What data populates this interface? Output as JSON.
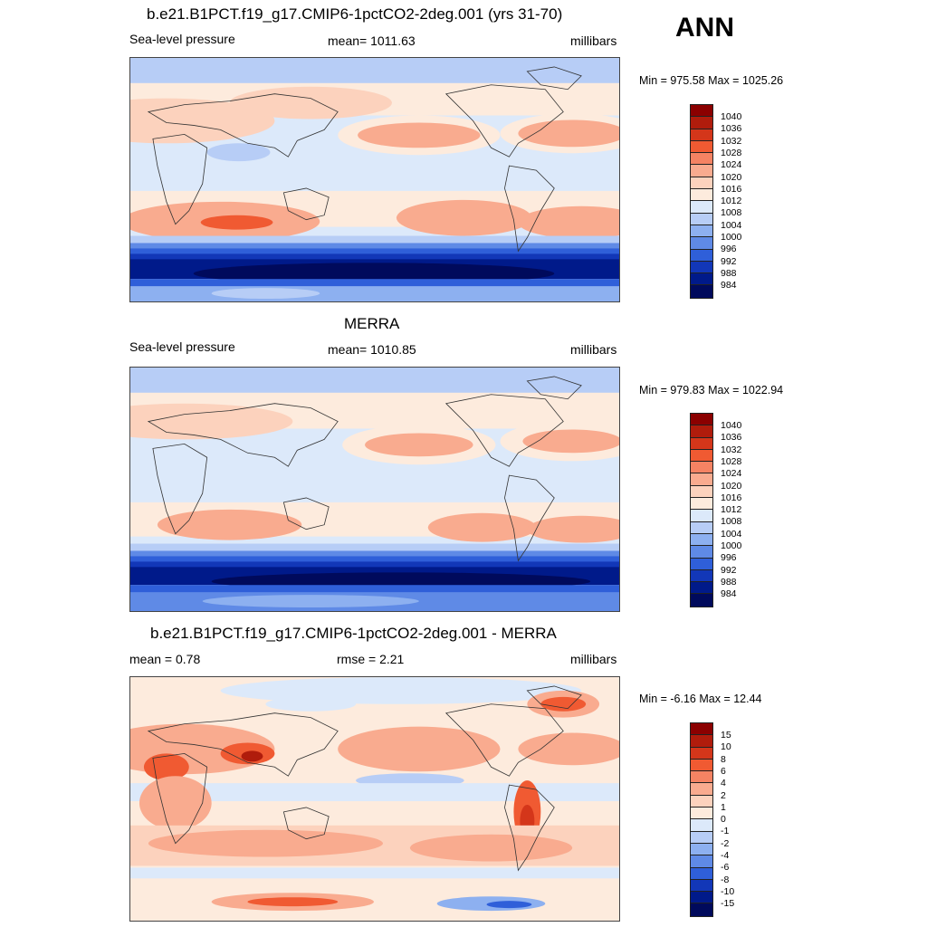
{
  "season": "ANN",
  "panels": [
    {
      "id": "model",
      "title": "b.e21.B1PCT.f19_g17.CMIP6-1pctCO2-2deg.001 (yrs 31-70)",
      "left_text": "Sea-level pressure",
      "center_text": "mean= 1011.63",
      "units": "millibars",
      "minmax": "Min = 975.58 Max = 1025.26",
      "colorbar_levels": [
        "1040",
        "1036",
        "1032",
        "1028",
        "1024",
        "1020",
        "1016",
        "1012",
        "1008",
        "1004",
        "1000",
        "996",
        "992",
        "988",
        "984"
      ],
      "colorbar_colors": [
        "#8b0000",
        "#b01c0c",
        "#d4361a",
        "#f05a32",
        "#f58363",
        "#f9ab8f",
        "#fcd2bd",
        "#fdebdd",
        "#dce9fa",
        "#b7cdf6",
        "#8db0f0",
        "#5f8ae6",
        "#2f5fd9",
        "#1237b8",
        "#001a8a",
        "#000a5c"
      ]
    },
    {
      "id": "obs",
      "title": "MERRA",
      "left_text": "Sea-level pressure",
      "center_text": "mean= 1010.85",
      "units": "millibars",
      "minmax": "Min = 979.83 Max = 1022.94",
      "colorbar_levels": [
        "1040",
        "1036",
        "1032",
        "1028",
        "1024",
        "1020",
        "1016",
        "1012",
        "1008",
        "1004",
        "1000",
        "996",
        "992",
        "988",
        "984"
      ],
      "colorbar_colors": [
        "#8b0000",
        "#b01c0c",
        "#d4361a",
        "#f05a32",
        "#f58363",
        "#f9ab8f",
        "#fcd2bd",
        "#fdebdd",
        "#dce9fa",
        "#b7cdf6",
        "#8db0f0",
        "#5f8ae6",
        "#2f5fd9",
        "#1237b8",
        "#001a8a",
        "#000a5c"
      ]
    },
    {
      "id": "diff",
      "title": "b.e21.B1PCT.f19_g17.CMIP6-1pctCO2-2deg.001 - MERRA",
      "left_text": "mean =   0.78",
      "center_text": "rmse =   2.21",
      "units": "millibars",
      "minmax": "Min =  -6.16 Max =  12.44",
      "colorbar_levels": [
        "15",
        "10",
        "8",
        "6",
        "4",
        "2",
        "1",
        "0",
        "-1",
        "-2",
        "-4",
        "-6",
        "-8",
        "-10",
        "-15"
      ],
      "colorbar_colors": [
        "#8b0000",
        "#b01c0c",
        "#d4361a",
        "#f05a32",
        "#f58363",
        "#f9ab8f",
        "#fcd2bd",
        "#fdebdd",
        "#dce9fa",
        "#b7cdf6",
        "#8db0f0",
        "#5f8ae6",
        "#2f5fd9",
        "#1237b8",
        "#001a8a",
        "#000a5c"
      ]
    }
  ]
}
